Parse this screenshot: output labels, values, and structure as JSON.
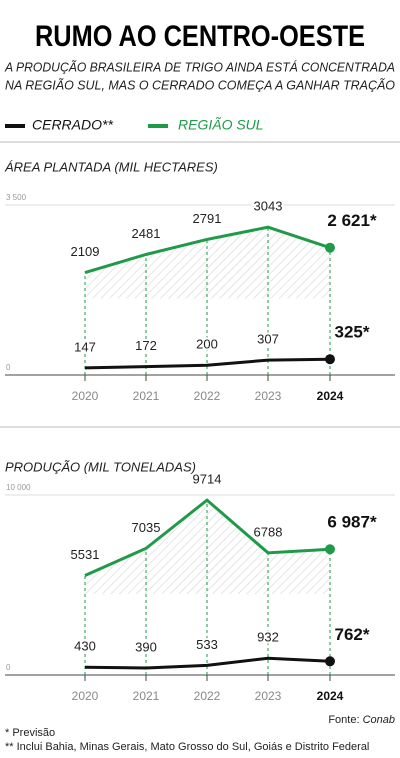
{
  "title": "RUMO AO CENTRO-OESTE",
  "subtitle": [
    "A PRODUÇÃO BRASILEIRA DE TRIGO AINDA ESTÁ CONCENTRADA",
    "NA REGIÃO SUL, MAS O CERRADO COMEÇA A GANHAR TRAÇÃO"
  ],
  "source": {
    "label": "Fonte: ",
    "name": "Conab"
  },
  "footnotes": [
    "* Previsão",
    "** Inclui Bahia, Minas Gerais, Mato Grosso do Sul, Goiás e Distrito Federal"
  ],
  "chart_data": [
    {
      "type": "line",
      "title": "ÁREA PLANTADA (MIL HECTARES)",
      "categories": [
        "2020",
        "2021",
        "2022",
        "2023",
        "2024"
      ],
      "series": [
        {
          "name": "CERRADO**",
          "color": "#111111",
          "values": [
            147,
            172,
            200,
            307,
            325
          ],
          "value_labels": [
            "147",
            "172",
            "200",
            "307",
            "325*"
          ]
        },
        {
          "name": "REGIÃO SUL",
          "color": "#1f9a48",
          "values": [
            2109,
            2481,
            2791,
            3043,
            2621
          ],
          "value_labels": [
            "2109",
            "2481",
            "2791",
            "3043",
            "2 621*"
          ]
        }
      ],
      "ylim": [
        0,
        3500
      ],
      "yticks": [
        0,
        {
          "value": 3500,
          "label": "3 500"
        }
      ],
      "grid": true
    },
    {
      "type": "line",
      "title": "PRODUÇÃO (MIL TONELADAS)",
      "categories": [
        "2020",
        "2021",
        "2022",
        "2023",
        "2024"
      ],
      "series": [
        {
          "color": "#111111",
          "values": [
            430,
            390,
            533,
            932,
            762
          ],
          "value_labels": [
            "430",
            "390",
            "533",
            "932",
            "762*"
          ]
        },
        {
          "color": "#1f9a48",
          "values": [
            5531,
            7035,
            9714,
            6788,
            6987
          ],
          "value_labels": [
            "5531",
            "7035",
            "9714",
            "6788",
            "6 987*"
          ]
        }
      ],
      "ylim": [
        0,
        10000
      ],
      "yticks": [
        0,
        {
          "value": 10000,
          "label": "10 000"
        }
      ],
      "grid": true
    }
  ]
}
